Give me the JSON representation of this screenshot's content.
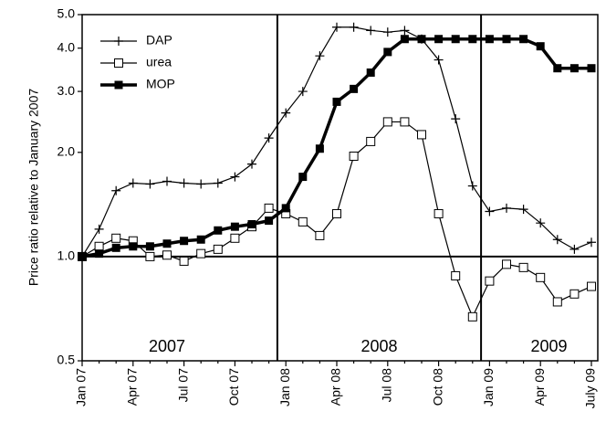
{
  "chart_data": {
    "type": "line",
    "y_label": "Price ratio relative to January 2007",
    "categories": [
      "Jan 07",
      null,
      null,
      "Apr 07",
      null,
      null,
      "Jul 07",
      null,
      null,
      "Oct 07",
      null,
      null,
      "Jan 08",
      null,
      null,
      "Apr 08",
      null,
      null,
      "Jul 08",
      null,
      null,
      "Oct 08",
      null,
      null,
      "Jan 09",
      null,
      null,
      "Apr 09",
      null,
      null,
      "July 09"
    ],
    "series": [
      {
        "name": "DAP",
        "color": "#000000",
        "marker": "plus",
        "values": [
          1.0,
          1.2,
          1.55,
          1.63,
          1.62,
          1.65,
          1.63,
          1.62,
          1.63,
          1.7,
          1.85,
          2.2,
          2.6,
          3.0,
          3.8,
          4.6,
          4.6,
          4.5,
          4.45,
          4.5,
          4.25,
          3.7,
          2.5,
          1.6,
          1.35,
          1.38,
          1.37,
          1.25,
          1.12,
          1.05,
          1.1
        ]
      },
      {
        "name": "urea",
        "color": "#000000",
        "marker": "open-square",
        "values": [
          1.0,
          1.07,
          1.13,
          1.11,
          1.0,
          1.01,
          0.97,
          1.02,
          1.05,
          1.13,
          1.22,
          1.38,
          1.33,
          1.26,
          1.15,
          1.33,
          1.95,
          2.15,
          2.45,
          2.45,
          2.25,
          1.33,
          0.88,
          0.67,
          0.85,
          0.95,
          0.93,
          0.87,
          0.74,
          0.78,
          0.82
        ]
      },
      {
        "name": "MOP",
        "color": "#000000",
        "marker": "filled-square",
        "values": [
          1.0,
          1.02,
          1.06,
          1.07,
          1.07,
          1.09,
          1.11,
          1.12,
          1.19,
          1.22,
          1.24,
          1.27,
          1.38,
          1.7,
          2.05,
          2.8,
          3.05,
          3.4,
          3.9,
          4.25,
          4.25,
          4.25,
          4.25,
          4.25,
          4.25,
          4.25,
          4.25,
          4.05,
          3.5,
          3.5,
          3.5
        ]
      }
    ],
    "annotations": [
      "2007",
      "2008",
      "2009"
    ],
    "log_y": true,
    "ylim": [
      0.5,
      5.0
    ],
    "yticks": [
      0.5,
      {
        "value": 1,
        "label": "1.0"
      },
      {
        "value": 2,
        "label": "2.0"
      },
      {
        "value": 3,
        "label": "3.0"
      },
      {
        "value": 4,
        "label": "4.0"
      },
      {
        "value": 5,
        "label": "5.0"
      }
    ],
    "hline": 1,
    "legend": "top-left"
  }
}
